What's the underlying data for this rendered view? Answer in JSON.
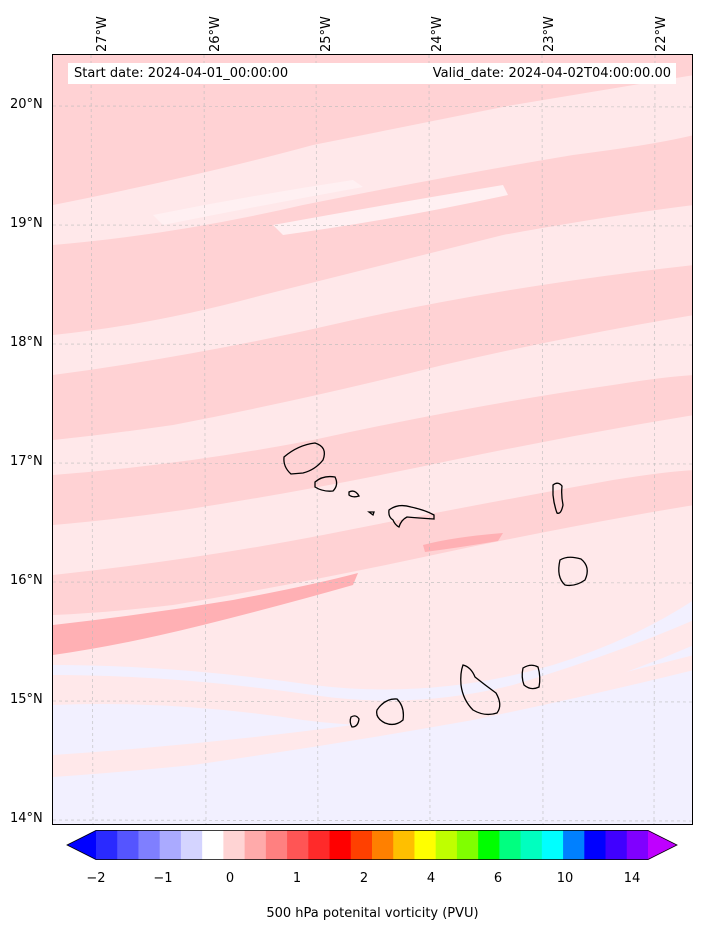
{
  "map": {
    "start_date_text": "Start date: 2024-04-01_00:00:00",
    "valid_date_text": "Valid_date: 2024-04-02T04:00:00.00",
    "longitude_labels": [
      "27°W",
      "26°W",
      "25°W",
      "24°W",
      "23°W",
      "22°W"
    ],
    "latitude_labels": [
      "20°N",
      "19°N",
      "18°N",
      "17°N",
      "16°N",
      "15°N",
      "14°N"
    ],
    "variable": "500 hPa potential vorticity",
    "gridlines": true,
    "coastlines": "Cape Verde islands"
  },
  "colorbar": {
    "label": "500 hPa potenital vorticity (PVU)",
    "tick_labels": [
      "−2",
      "−1",
      "0",
      "1",
      "2",
      "4",
      "6",
      "10",
      "14"
    ],
    "extend": "both",
    "colors": [
      "#0000ff",
      "#2a2aff",
      "#5555ff",
      "#7f7fff",
      "#aaaaff",
      "#d4d4ff",
      "#ffffff",
      "#ffd4d4",
      "#ffaaaa",
      "#ff8080",
      "#ff5555",
      "#ff2a2a",
      "#ff0000",
      "#ff4000",
      "#ff8000",
      "#ffbf00",
      "#ffff00",
      "#bfff00",
      "#80ff00",
      "#00ff00",
      "#00ff80",
      "#00ffbf",
      "#00ffff",
      "#0080ff",
      "#0000ff",
      "#4000ff",
      "#8000ff",
      "#bf00ff"
    ]
  }
}
